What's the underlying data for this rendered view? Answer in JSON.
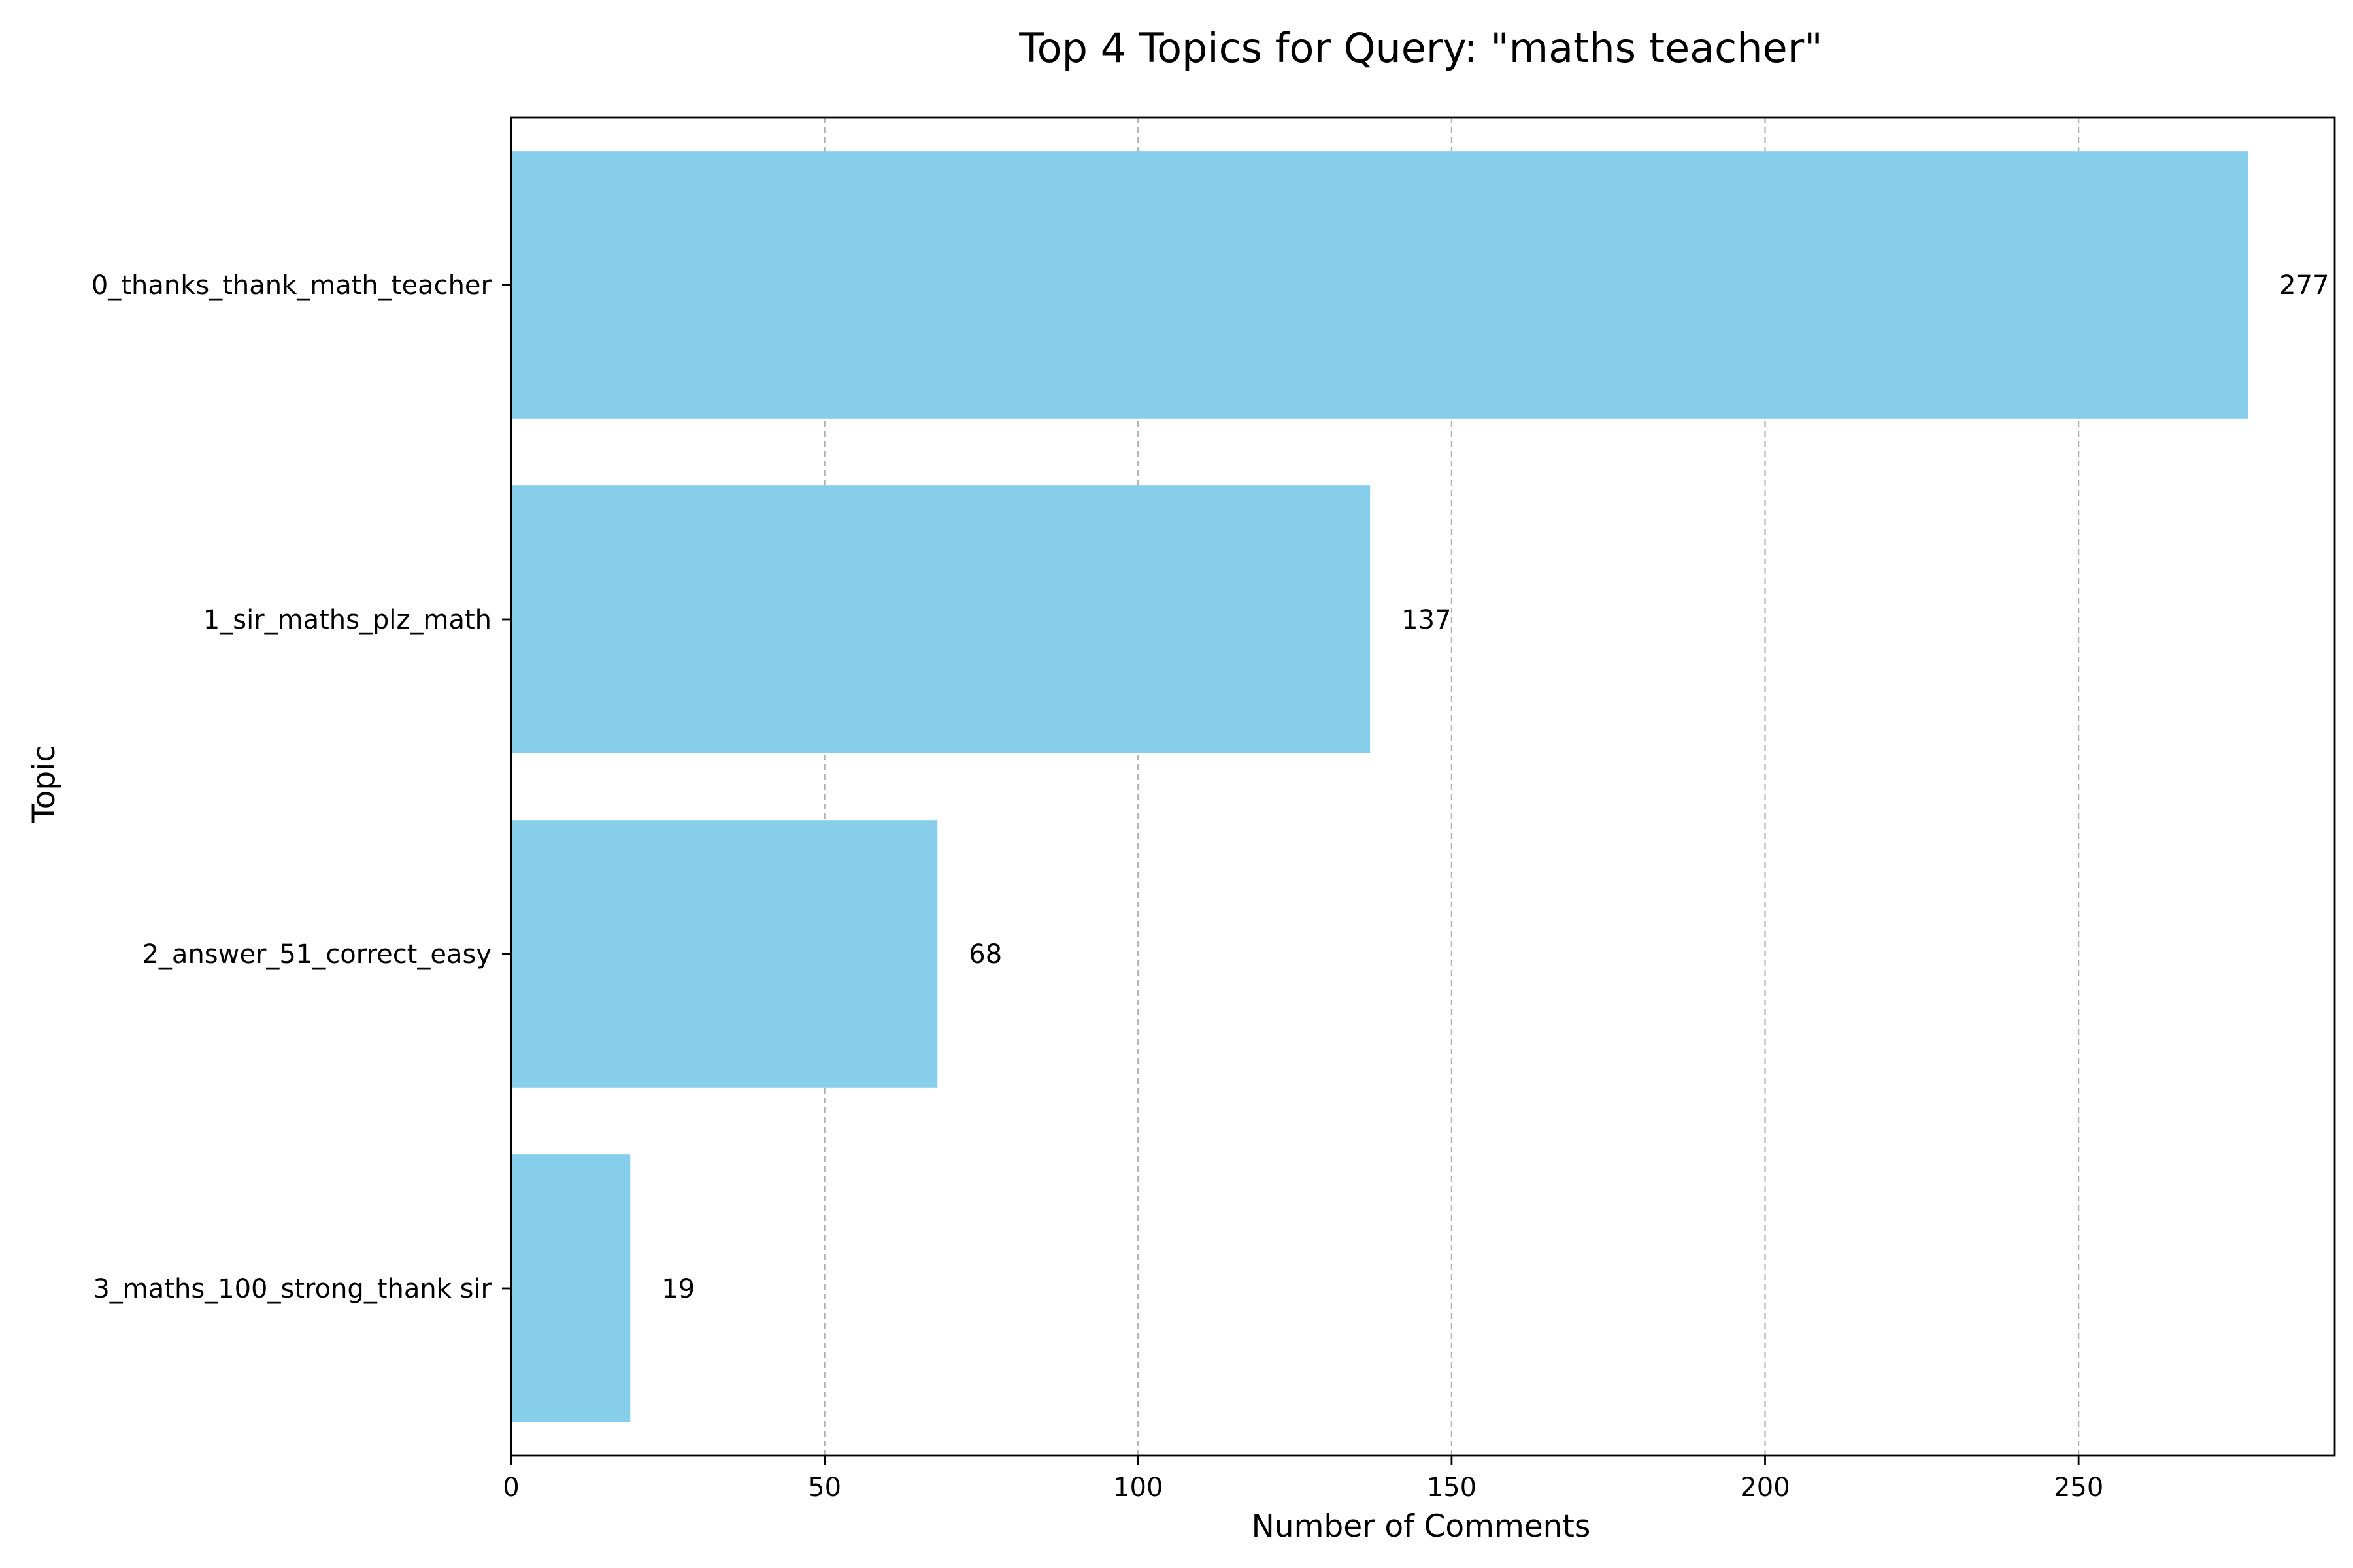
{
  "chart_data": {
    "type": "bar",
    "orientation": "horizontal",
    "title": "Top 4 Topics for Query: \"maths teacher\"",
    "xlabel": "Number of Comments",
    "ylabel": "Topic",
    "categories": [
      "0_thanks_thank_math_teacher",
      "1_sir_maths_plz_math",
      "2_answer_51_correct_easy",
      "3_maths_100_strong_thank sir"
    ],
    "values": [
      277,
      137,
      68,
      19
    ],
    "data_labels": [
      "277",
      "137",
      "68",
      "19"
    ],
    "xlim": [
      0,
      290.85
    ],
    "xticks": [
      0,
      50,
      100,
      150,
      200,
      250
    ],
    "xtick_labels": [
      "0",
      "50",
      "100",
      "150",
      "200",
      "250"
    ],
    "grid": "x-dashed",
    "legend": "none",
    "bar_color": "#87ceeb"
  }
}
